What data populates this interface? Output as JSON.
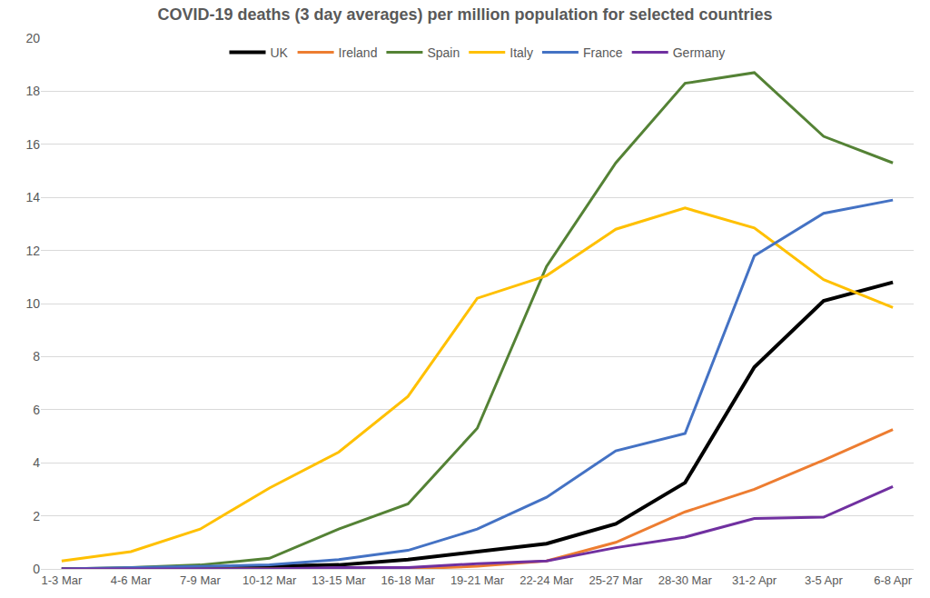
{
  "chart_data": {
    "type": "line",
    "title": "COVID-19 deaths (3 day averages) per million population for selected countries",
    "categories": [
      "1-3 Mar",
      "4-6 Mar",
      "7-9 Mar",
      "10-12 Mar",
      "13-15 Mar",
      "16-18 Mar",
      "19-21 Mar",
      "22-24 Mar",
      "25-27 Mar",
      "28-30 Mar",
      "31-2 Apr",
      "3-5 Apr",
      "6-8 Apr"
    ],
    "series": [
      {
        "name": "UK",
        "color": "#000000",
        "values": [
          0,
          0,
          0.05,
          0.1,
          0.15,
          0.35,
          0.65,
          0.95,
          1.7,
          3.25,
          7.6,
          10.1,
          10.8
        ]
      },
      {
        "name": "Ireland",
        "color": "#ED7D31",
        "values": [
          0,
          0,
          0,
          0,
          0,
          0,
          0.1,
          0.3,
          1.0,
          2.15,
          3.0,
          4.1,
          5.25
        ]
      },
      {
        "name": "Spain",
        "color": "#548235",
        "values": [
          0,
          0.05,
          0.15,
          0.4,
          1.5,
          2.45,
          5.3,
          11.4,
          15.3,
          18.3,
          18.7,
          16.3,
          15.3
        ]
      },
      {
        "name": "Italy",
        "color": "#FFC000",
        "values": [
          0.3,
          0.65,
          1.5,
          3.05,
          4.4,
          6.5,
          10.2,
          11.05,
          12.8,
          13.6,
          12.85,
          10.9,
          9.85
        ]
      },
      {
        "name": "France",
        "color": "#4472C4",
        "values": [
          0,
          0.05,
          0.1,
          0.15,
          0.35,
          0.7,
          1.5,
          2.7,
          4.45,
          5.1,
          11.8,
          13.4,
          13.9
        ]
      },
      {
        "name": "Germany",
        "color": "#7030A0",
        "values": [
          0,
          0,
          0,
          0,
          0.05,
          0.05,
          0.2,
          0.3,
          0.8,
          1.2,
          1.9,
          1.95,
          3.1
        ]
      }
    ],
    "ylim": [
      0,
      20
    ],
    "yticks": [
      0,
      2,
      4,
      6,
      8,
      10,
      12,
      14,
      16,
      18,
      20
    ],
    "grid": true,
    "legend": "top"
  }
}
